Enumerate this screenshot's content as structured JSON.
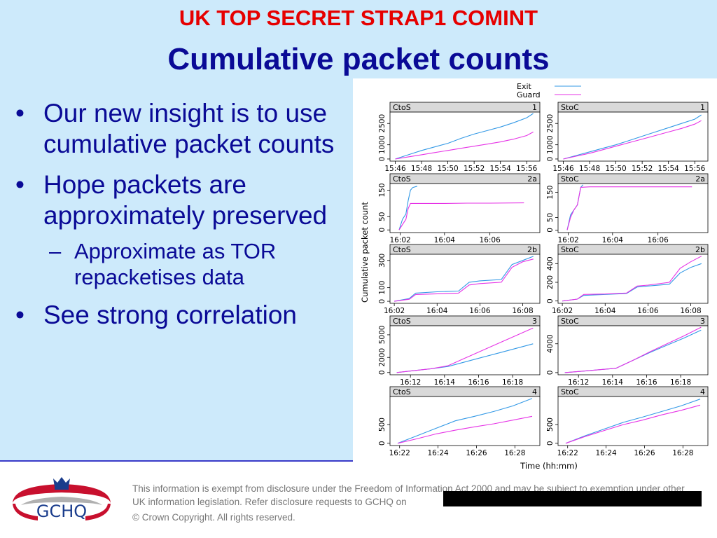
{
  "header": {
    "classification": "UK TOP SECRET STRAP1 COMINT",
    "title": "Cumulative packet counts"
  },
  "bullets": [
    {
      "level": 1,
      "text": "Our new insight is to use cumulative packet counts"
    },
    {
      "level": 1,
      "text": "Hope packets are approximately preserved"
    },
    {
      "level": 2,
      "text": "Approximate as TOR repacketises data"
    },
    {
      "level": 1,
      "text": "See strong correlation"
    }
  ],
  "footer": {
    "disclaimer": "This information is exempt from disclosure under the Freedom of Information Act 2000 and may be subject to exemption under other UK information legislation. Refer disclosure requests to GCHQ on",
    "copyright": "© Crown Copyright. All rights reserved.",
    "logo_text": "GCHQ"
  },
  "chart_data": {
    "type": "line",
    "xlabel": "Time (hh:mm)",
    "ylabel": "Cumulative packet count",
    "legend": {
      "position": "top",
      "entries": [
        {
          "name": "Exit",
          "color": "#3399e6"
        },
        {
          "name": "Guard",
          "color": "#e633e6"
        }
      ]
    },
    "panels": [
      {
        "strip_left": "CtoS",
        "strip_right": "1",
        "xticks": [
          "15:46",
          "15:48",
          "15:50",
          "15:52",
          "15:54",
          "15:56"
        ],
        "yticks": [
          "0",
          "1000",
          "2500"
        ],
        "series": [
          {
            "name": "Exit",
            "x": [
              0,
              1,
              2,
              3,
              4,
              5,
              6,
              7,
              8,
              9,
              10,
              10.5
            ],
            "y": [
              0,
              300,
              600,
              850,
              1100,
              1450,
              1750,
              2000,
              2250,
              2550,
              2900,
              3200
            ]
          },
          {
            "name": "Guard",
            "x": [
              0,
              1,
              2,
              3,
              4,
              5,
              6,
              7,
              8,
              9,
              10,
              10.5
            ],
            "y": [
              0,
              150,
              300,
              450,
              600,
              750,
              900,
              1050,
              1200,
              1400,
              1650,
              1900
            ]
          }
        ]
      },
      {
        "strip_left": "StoC",
        "strip_right": "1",
        "xticks": [
          "15:46",
          "15:48",
          "15:50",
          "15:52",
          "15:54",
          "15:56"
        ],
        "yticks": [
          "0",
          "1000",
          "2500"
        ],
        "series": [
          {
            "name": "Exit",
            "x": [
              0,
              1,
              2,
              3,
              4,
              5,
              6,
              7,
              8,
              9,
              10,
              10.5
            ],
            "y": [
              0,
              250,
              500,
              750,
              1000,
              1300,
              1600,
              1900,
              2200,
              2500,
              2800,
              3100
            ]
          },
          {
            "name": "Guard",
            "x": [
              0,
              1,
              2,
              3,
              4,
              5,
              6,
              7,
              8,
              9,
              10,
              10.5
            ],
            "y": [
              0,
              200,
              400,
              650,
              900,
              1150,
              1400,
              1650,
              1900,
              2150,
              2450,
              2700
            ]
          }
        ]
      },
      {
        "strip_left": "CtoS",
        "strip_right": "2a",
        "xticks": [
          "16:02",
          "16:04",
          "16:06"
        ],
        "yticks": [
          "0",
          "50",
          "150"
        ],
        "series": [
          {
            "name": "Exit",
            "x": [
              0,
              0.15,
              0.3,
              0.4,
              0.5,
              0.6,
              0.8
            ],
            "y": [
              0,
              40,
              60,
              110,
              150,
              160,
              165
            ]
          },
          {
            "name": "Guard",
            "x": [
              0,
              0.15,
              0.3,
              0.4,
              0.5,
              1,
              2,
              3,
              4,
              5.5
            ],
            "y": [
              0,
              20,
              40,
              80,
              100,
              100,
              100,
              101,
              101,
              102
            ]
          }
        ]
      },
      {
        "strip_left": "StoC",
        "strip_right": "2a",
        "xticks": [
          "16:02",
          "16:04",
          "16:06"
        ],
        "yticks": [
          "0",
          "50",
          "150"
        ],
        "series": [
          {
            "name": "Exit",
            "x": [
              0,
              0.15,
              0.3,
              0.45,
              0.6,
              0.7
            ],
            "y": [
              0,
              60,
              80,
              100,
              170,
              180
            ]
          },
          {
            "name": "Guard",
            "x": [
              0,
              0.15,
              0.3,
              0.45,
              0.6,
              1,
              2,
              3,
              4,
              5.5
            ],
            "y": [
              0,
              50,
              80,
              100,
              170,
              172,
              172,
              172,
              172,
              172
            ]
          }
        ]
      },
      {
        "strip_left": "CtoS",
        "strip_right": "2b",
        "xticks": [
          "16:02",
          "16:04",
          "16:06",
          "16:08"
        ],
        "yticks": [
          "0",
          "100",
          "300"
        ],
        "series": [
          {
            "name": "Exit",
            "x": [
              0,
              0.7,
              1,
              2,
              3,
              3.5,
              4,
              5,
              5.5,
              6,
              6.5
            ],
            "y": [
              0,
              20,
              60,
              70,
              75,
              140,
              150,
              160,
              270,
              300,
              330
            ]
          },
          {
            "name": "Guard",
            "x": [
              0,
              0.7,
              1,
              2,
              3,
              3.5,
              4,
              5,
              5.5,
              6,
              6.5
            ],
            "y": [
              0,
              15,
              50,
              55,
              60,
              120,
              130,
              140,
              250,
              290,
              310
            ]
          }
        ]
      },
      {
        "strip_left": "StoC",
        "strip_right": "2b",
        "xticks": [
          "16:02",
          "16:04",
          "16:06",
          "16:08"
        ],
        "yticks": [
          "0",
          "200",
          "400"
        ],
        "series": [
          {
            "name": "Exit",
            "x": [
              0,
              0.7,
              1,
              2,
              3,
              3.5,
              4,
              5,
              5.5,
              6,
              6.5
            ],
            "y": [
              0,
              20,
              60,
              70,
              80,
              150,
              160,
              180,
              300,
              360,
              400
            ]
          },
          {
            "name": "Guard",
            "x": [
              0,
              0.7,
              1,
              2,
              3,
              3.5,
              4,
              5,
              5.5,
              6,
              6.5
            ],
            "y": [
              0,
              20,
              70,
              75,
              85,
              160,
              170,
              200,
              350,
              420,
              480
            ]
          }
        ]
      },
      {
        "strip_left": "CtoS",
        "strip_right": "3",
        "xticks": [
          "16:12",
          "16:14",
          "16:16",
          "16:18"
        ],
        "yticks": [
          "0",
          "2000",
          "5000"
        ],
        "series": [
          {
            "name": "Exit",
            "x": [
              0,
              1,
              2,
              3,
              4,
              5,
              6,
              7,
              8
            ],
            "y": [
              0,
              250,
              500,
              800,
              1400,
              2000,
              2600,
              3200,
              3800
            ]
          },
          {
            "name": "Guard",
            "x": [
              0,
              1,
              2,
              3,
              4,
              5,
              6,
              7,
              8
            ],
            "y": [
              0,
              250,
              500,
              900,
              1900,
              2900,
              3900,
              4900,
              5900
            ]
          }
        ]
      },
      {
        "strip_left": "StoC",
        "strip_right": "3",
        "xticks": [
          "16:12",
          "16:14",
          "16:16",
          "16:18"
        ],
        "yticks": [
          "0",
          "4000"
        ],
        "series": [
          {
            "name": "Exit",
            "x": [
              0,
              1,
              2,
              3,
              4,
              5,
              6,
              7,
              8
            ],
            "y": [
              0,
              200,
              400,
              600,
              1700,
              2800,
              3800,
              4800,
              5900
            ]
          },
          {
            "name": "Guard",
            "x": [
              0,
              1,
              2,
              3,
              4,
              5,
              6,
              7,
              8
            ],
            "y": [
              0,
              200,
              400,
              600,
              1700,
              2900,
              4000,
              5100,
              6300
            ]
          }
        ]
      },
      {
        "strip_left": "CtoS",
        "strip_right": "4",
        "xticks": [
          "16:22",
          "16:24",
          "16:26",
          "16:28"
        ],
        "yticks": [
          "0",
          "500"
        ],
        "series": [
          {
            "name": "Exit",
            "x": [
              0,
              1,
              2,
              3,
              4,
              5,
              6,
              7
            ],
            "y": [
              0,
              200,
              400,
              600,
              720,
              850,
              1000,
              1200
            ]
          },
          {
            "name": "Guard",
            "x": [
              0,
              1,
              2,
              3,
              4,
              5,
              6,
              7
            ],
            "y": [
              0,
              120,
              250,
              350,
              440,
              520,
              620,
              720
            ]
          }
        ]
      },
      {
        "strip_left": "StoC",
        "strip_right": "4",
        "xticks": [
          "16:22",
          "16:24",
          "16:26",
          "16:28"
        ],
        "yticks": [
          "0",
          "500"
        ],
        "series": [
          {
            "name": "Exit",
            "x": [
              0,
              1,
              2,
              3,
              4,
              5,
              6,
              7
            ],
            "y": [
              0,
              200,
              380,
              560,
              700,
              850,
              1000,
              1180
            ]
          },
          {
            "name": "Guard",
            "x": [
              0,
              1,
              2,
              3,
              4,
              5,
              6,
              7
            ],
            "y": [
              0,
              180,
              340,
              500,
              620,
              760,
              880,
              1020
            ]
          }
        ]
      }
    ]
  }
}
